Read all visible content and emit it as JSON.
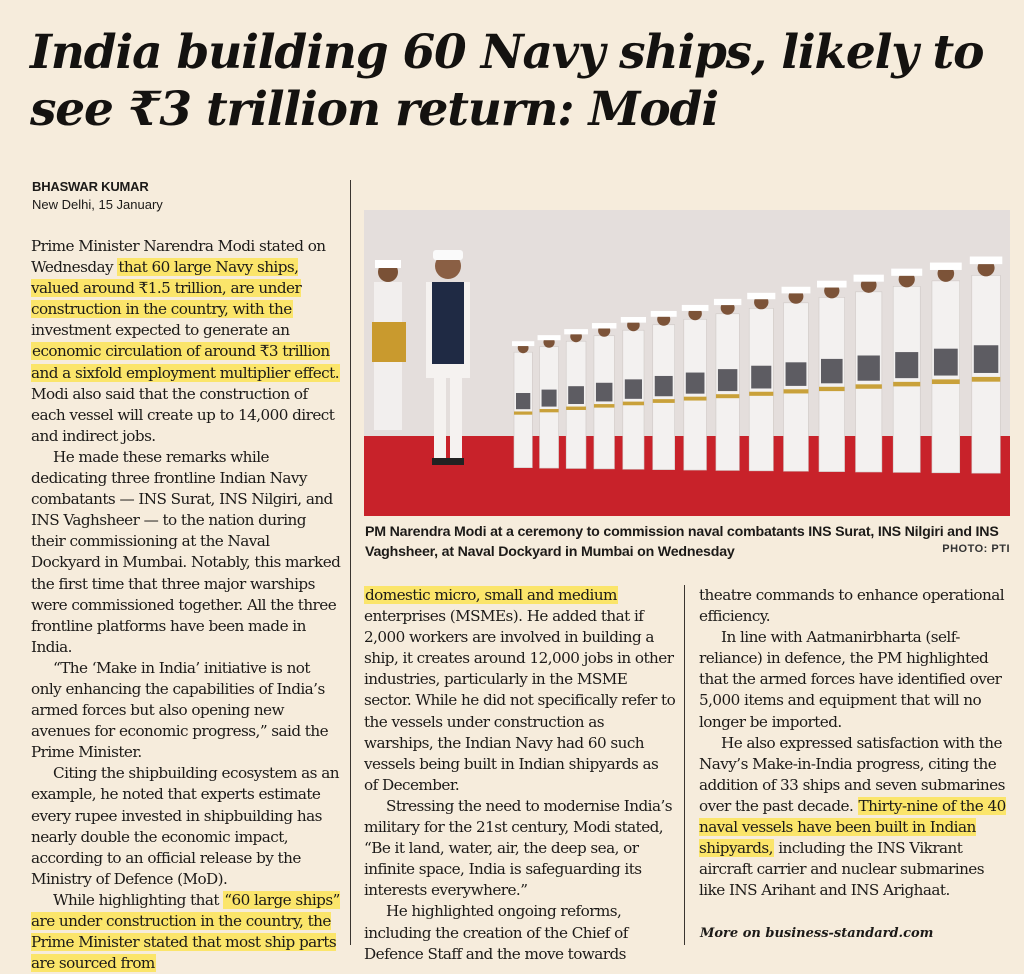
{
  "headline": "India building 60 Navy ships, likely to see ₹3 trillion return: Modi",
  "author": "BHASWAR KUMAR",
  "dateline": "New Delhi, 15 January",
  "col1": {
    "p1_pre": "Prime Minister Narendra Modi stated on Wednesday",
    "p1_hl1": "that 60 large Navy ships, valued around ₹1.5 trillion, are under construction in the country, with the",
    "p1_mid": "investment expected to generate an",
    "p1_hl2": "economic circulation of around ₹3 trillion and a sixfold employment multiplier effect.",
    "p1_post": "Modi also said that the construction of each vessel will create up to 14,000 direct and indirect jobs.",
    "p2": "He made these remarks while dedicating three frontline Indian Navy combatants — INS Surat, INS Nilgiri, and INS Vaghsheer — to the nation during their commissioning at the Naval Dockyard in Mumbai. Notably, this marked the first time that three major warships were commissioned together. All the three frontline platforms have been made in India.",
    "p3": "“The ‘Make in India’ initiative is not only enhancing the capabilities of India’s armed forces but also opening new avenues for economic progress,” said the Prime Minister.",
    "p4": "Citing the shipbuilding ecosystem as an example, he noted that experts estimate every rupee invested in shipbuilding has nearly double the economic impact, according to an official release by the Ministry of Defence (MoD).",
    "p5_pre": "While highlighting that",
    "p5_hl": "“60 large ships” are under construction in the country, the Prime Minister stated that most ship parts are sourced from"
  },
  "col2": {
    "p1_hl": "domestic micro, small and medium",
    "p1_post": "enterprises (MSMEs). He added that if 2,000 workers are involved in building a ship, it creates around 12,000 jobs in other industries, particularly in the MSME sector. While he did not specifically refer to the vessels under construction as warships, the Indian Navy had 60 such vessels being built in Indian shipyards as of December.",
    "p2": "Stressing the need to modernise India’s military for the 21st century, Modi stated, “Be it land, water, air, the deep sea, or infinite space, India is safeguarding its interests everywhere.”",
    "p3": "He highlighted ongoing reforms, including the creation of the Chief of Defence Staff and the move towards"
  },
  "col3": {
    "p1": "theatre commands to enhance operational efficiency.",
    "p2": "In line with Aatmanirbharta (self-reliance) in defence, the PM highlighted that the armed forces have identified over 5,000 items and equipment that will no longer be imported.",
    "p3_pre": "He also expressed satisfaction with the Navy’s Make-in-India progress, citing the addition of 33 ships and seven submarines over the past decade.",
    "p3_hl": "Thirty-nine of the 40 naval vessels have been built in Indian shipyards,",
    "p3_post": "including the INS Vikrant aircraft carrier and nuclear submarines like INS Arihant and INS Arighaat."
  },
  "caption": "PM Narendra Modi at a ceremony to commission naval combatants INS Surat, INS Nilgiri and INS Vaghsheer, at Naval Dockyard in Mumbai on Wednesday",
  "photo_credit": "PHOTO: PTI",
  "more": "More on business-standard.com",
  "colors": {
    "highlight": "#fbe56a",
    "paper": "#f6ecdc",
    "carpet": "#c51f27",
    "uniform": "#f3f1f0"
  }
}
